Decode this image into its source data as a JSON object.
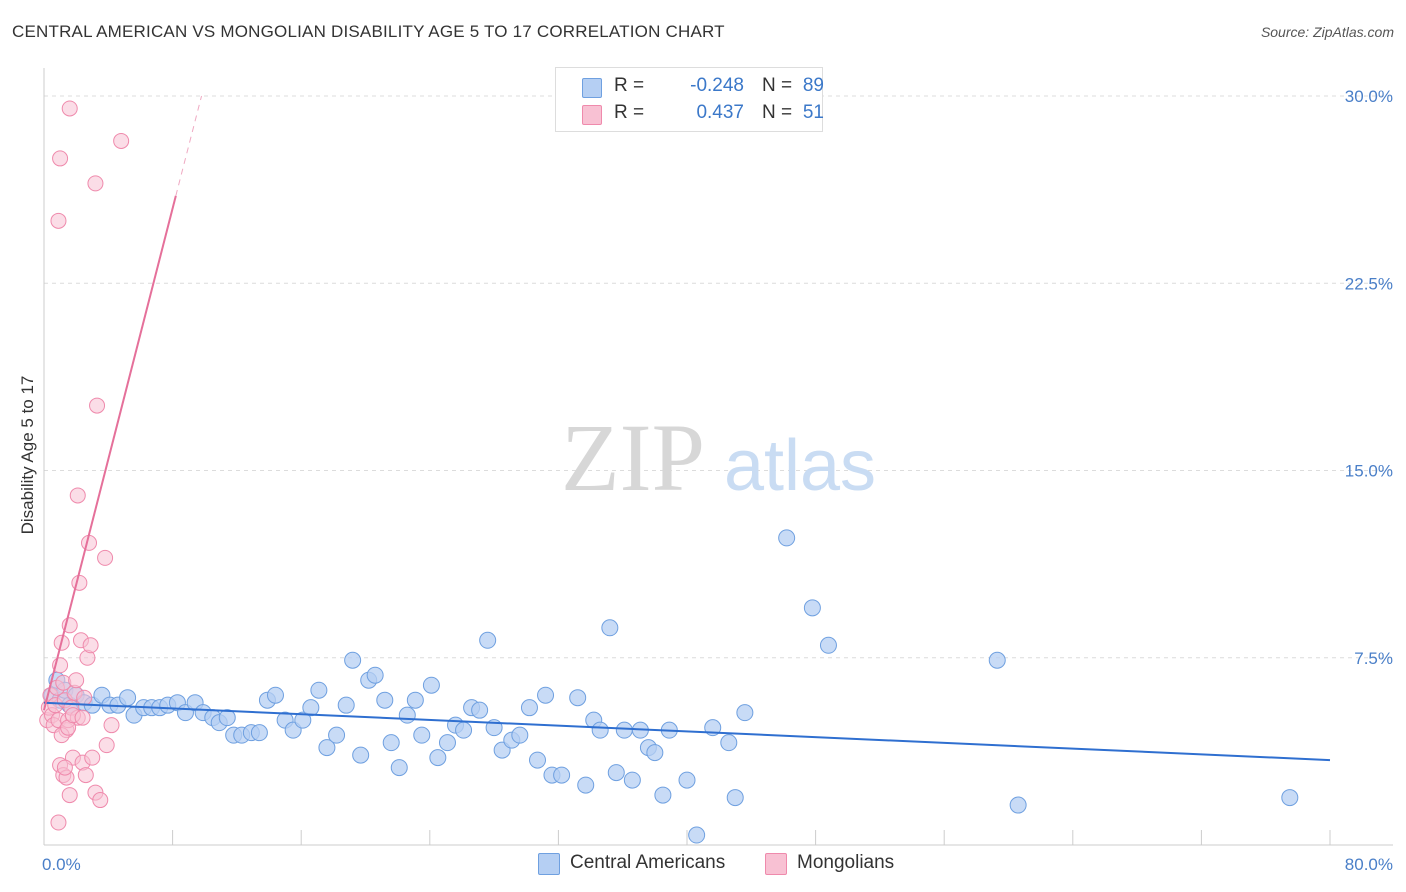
{
  "title": "CENTRAL AMERICAN VS MONGOLIAN DISABILITY AGE 5 TO 17 CORRELATION CHART",
  "source": "Source: ZipAtlas.com",
  "watermark": {
    "zip": "ZIP",
    "atlas": "atlas"
  },
  "legend": {
    "rows": [
      {
        "r_label": "R =",
        "r_value": "-0.248",
        "n_label": "N =",
        "n_value": "89",
        "color": "#a9c8f0"
      },
      {
        "r_label": "R =",
        "r_value": "0.437",
        "n_label": "N =",
        "n_value": "51",
        "color": "#f7b6cb"
      }
    ]
  },
  "bottom_legend": {
    "central": "Central Americans",
    "mongolian": "Mongolians"
  },
  "chart_data": {
    "type": "scatter",
    "title": "CENTRAL AMERICAN VS MONGOLIAN DISABILITY AGE 5 TO 17 CORRELATION CHART",
    "ylabel": "Disability Age 5 to 17",
    "xlabel": "",
    "x_range": [
      0,
      80
    ],
    "y_range": [
      0,
      30
    ],
    "x_ticks": [
      {
        "v": 0,
        "label": "0.0%"
      },
      {
        "v": 80,
        "label": "80.0%"
      }
    ],
    "y_ticks": [
      {
        "v": 7.5,
        "label": "7.5%"
      },
      {
        "v": 15,
        "label": "15.0%"
      },
      {
        "v": 22.5,
        "label": "22.5%"
      },
      {
        "v": 30,
        "label": "30.0%"
      }
    ],
    "grid": true,
    "colors": {
      "central": "#6fa0e0",
      "central_fill": "#b5cff3",
      "central_line": "#2f6fd0",
      "mongolian": "#ef8aac",
      "mongolian_fill": "#f8c1d3",
      "mongolian_line": "#e5709a"
    },
    "series": [
      {
        "name": "Central Americans",
        "trend": {
          "x0": 0,
          "y0": 5.7,
          "x1": 80,
          "y1": 3.4
        },
        "points": [
          [
            0.5,
            6.0
          ],
          [
            0.8,
            6.6
          ],
          [
            1.0,
            5.8
          ],
          [
            1.3,
            6.2
          ],
          [
            1.6,
            5.6
          ],
          [
            2.0,
            6.0
          ],
          [
            2.5,
            5.7
          ],
          [
            3.0,
            5.6
          ],
          [
            3.6,
            6.0
          ],
          [
            4.1,
            5.6
          ],
          [
            4.6,
            5.6
          ],
          [
            5.2,
            5.9
          ],
          [
            5.6,
            5.2
          ],
          [
            6.2,
            5.5
          ],
          [
            6.7,
            5.5
          ],
          [
            7.2,
            5.5
          ],
          [
            7.7,
            5.6
          ],
          [
            8.3,
            5.7
          ],
          [
            8.8,
            5.3
          ],
          [
            9.4,
            5.7
          ],
          [
            9.9,
            5.3
          ],
          [
            10.5,
            5.1
          ],
          [
            10.9,
            4.9
          ],
          [
            11.4,
            5.1
          ],
          [
            11.8,
            4.4
          ],
          [
            12.3,
            4.4
          ],
          [
            12.9,
            4.5
          ],
          [
            13.4,
            4.5
          ],
          [
            13.9,
            5.8
          ],
          [
            14.4,
            6.0
          ],
          [
            15.0,
            5.0
          ],
          [
            15.5,
            4.6
          ],
          [
            16.1,
            5.0
          ],
          [
            16.6,
            5.5
          ],
          [
            17.1,
            6.2
          ],
          [
            17.6,
            3.9
          ],
          [
            18.2,
            4.4
          ],
          [
            18.8,
            5.6
          ],
          [
            19.2,
            7.4
          ],
          [
            19.7,
            3.6
          ],
          [
            20.2,
            6.6
          ],
          [
            20.6,
            6.8
          ],
          [
            21.2,
            5.8
          ],
          [
            21.6,
            4.1
          ],
          [
            22.1,
            3.1
          ],
          [
            22.6,
            5.2
          ],
          [
            23.1,
            5.8
          ],
          [
            23.5,
            4.4
          ],
          [
            24.1,
            6.4
          ],
          [
            24.5,
            3.5
          ],
          [
            25.1,
            4.1
          ],
          [
            25.6,
            4.8
          ],
          [
            26.1,
            4.6
          ],
          [
            26.6,
            5.5
          ],
          [
            27.1,
            5.4
          ],
          [
            27.6,
            8.2
          ],
          [
            28.0,
            4.7
          ],
          [
            28.5,
            3.8
          ],
          [
            29.1,
            4.2
          ],
          [
            29.6,
            4.4
          ],
          [
            30.2,
            5.5
          ],
          [
            30.7,
            3.4
          ],
          [
            31.2,
            6.0
          ],
          [
            31.6,
            2.8
          ],
          [
            32.2,
            2.8
          ],
          [
            33.2,
            5.9
          ],
          [
            33.7,
            2.4
          ],
          [
            34.2,
            5.0
          ],
          [
            34.6,
            4.6
          ],
          [
            35.2,
            8.7
          ],
          [
            35.6,
            2.9
          ],
          [
            36.1,
            4.6
          ],
          [
            36.6,
            2.6
          ],
          [
            37.1,
            4.6
          ],
          [
            37.6,
            3.9
          ],
          [
            38.0,
            3.7
          ],
          [
            38.5,
            2.0
          ],
          [
            38.9,
            4.6
          ],
          [
            40.0,
            2.6
          ],
          [
            40.6,
            0.4
          ],
          [
            41.6,
            4.7
          ],
          [
            42.6,
            4.1
          ],
          [
            43.0,
            1.9
          ],
          [
            43.6,
            5.3
          ],
          [
            46.2,
            12.3
          ],
          [
            47.8,
            9.5
          ],
          [
            48.8,
            8.0
          ],
          [
            59.3,
            7.4
          ],
          [
            60.6,
            1.6
          ],
          [
            77.5,
            1.9
          ]
        ]
      },
      {
        "name": "Mongolians",
        "trend": {
          "x0": 0,
          "y0": 5.4,
          "x1": 8.2,
          "y1": 26.0,
          "dash_to_x": 9.8,
          "dash_to_y": 30.0
        },
        "points": [
          [
            0.2,
            5.0
          ],
          [
            0.3,
            5.5
          ],
          [
            0.4,
            6.0
          ],
          [
            0.5,
            5.2
          ],
          [
            0.6,
            4.8
          ],
          [
            0.7,
            5.6
          ],
          [
            0.8,
            6.3
          ],
          [
            0.9,
            5.0
          ],
          [
            1.0,
            7.2
          ],
          [
            1.1,
            8.1
          ],
          [
            1.2,
            6.5
          ],
          [
            1.3,
            5.8
          ],
          [
            1.4,
            4.6
          ],
          [
            1.5,
            5.0
          ],
          [
            1.6,
            8.8
          ],
          [
            1.7,
            5.5
          ],
          [
            1.8,
            3.5
          ],
          [
            1.9,
            6.1
          ],
          [
            2.0,
            6.6
          ],
          [
            2.1,
            5.1
          ],
          [
            2.2,
            10.5
          ],
          [
            2.3,
            8.2
          ],
          [
            2.4,
            3.3
          ],
          [
            2.5,
            5.9
          ],
          [
            2.6,
            2.8
          ],
          [
            2.7,
            7.5
          ],
          [
            2.8,
            12.1
          ],
          [
            2.9,
            8.0
          ],
          [
            3.0,
            3.5
          ],
          [
            3.2,
            2.1
          ],
          [
            3.5,
            1.8
          ],
          [
            3.8,
            11.5
          ],
          [
            1.0,
            3.2
          ],
          [
            1.2,
            2.8
          ],
          [
            1.4,
            2.7
          ],
          [
            1.6,
            2.0
          ],
          [
            0.9,
            0.9
          ],
          [
            1.1,
            4.4
          ],
          [
            1.3,
            3.1
          ],
          [
            1.5,
            4.7
          ],
          [
            2.1,
            14.0
          ],
          [
            0.9,
            25.0
          ],
          [
            1.0,
            27.5
          ],
          [
            1.6,
            29.5
          ],
          [
            3.2,
            26.5
          ],
          [
            4.8,
            28.2
          ],
          [
            3.3,
            17.6
          ],
          [
            4.2,
            4.8
          ],
          [
            3.9,
            4.0
          ],
          [
            1.8,
            5.2
          ],
          [
            2.4,
            5.1
          ]
        ]
      }
    ]
  },
  "axis": {
    "ylabel": "Disability Age 5 to 17",
    "x_min_label": "0.0%",
    "x_max_label": "80.0%"
  }
}
